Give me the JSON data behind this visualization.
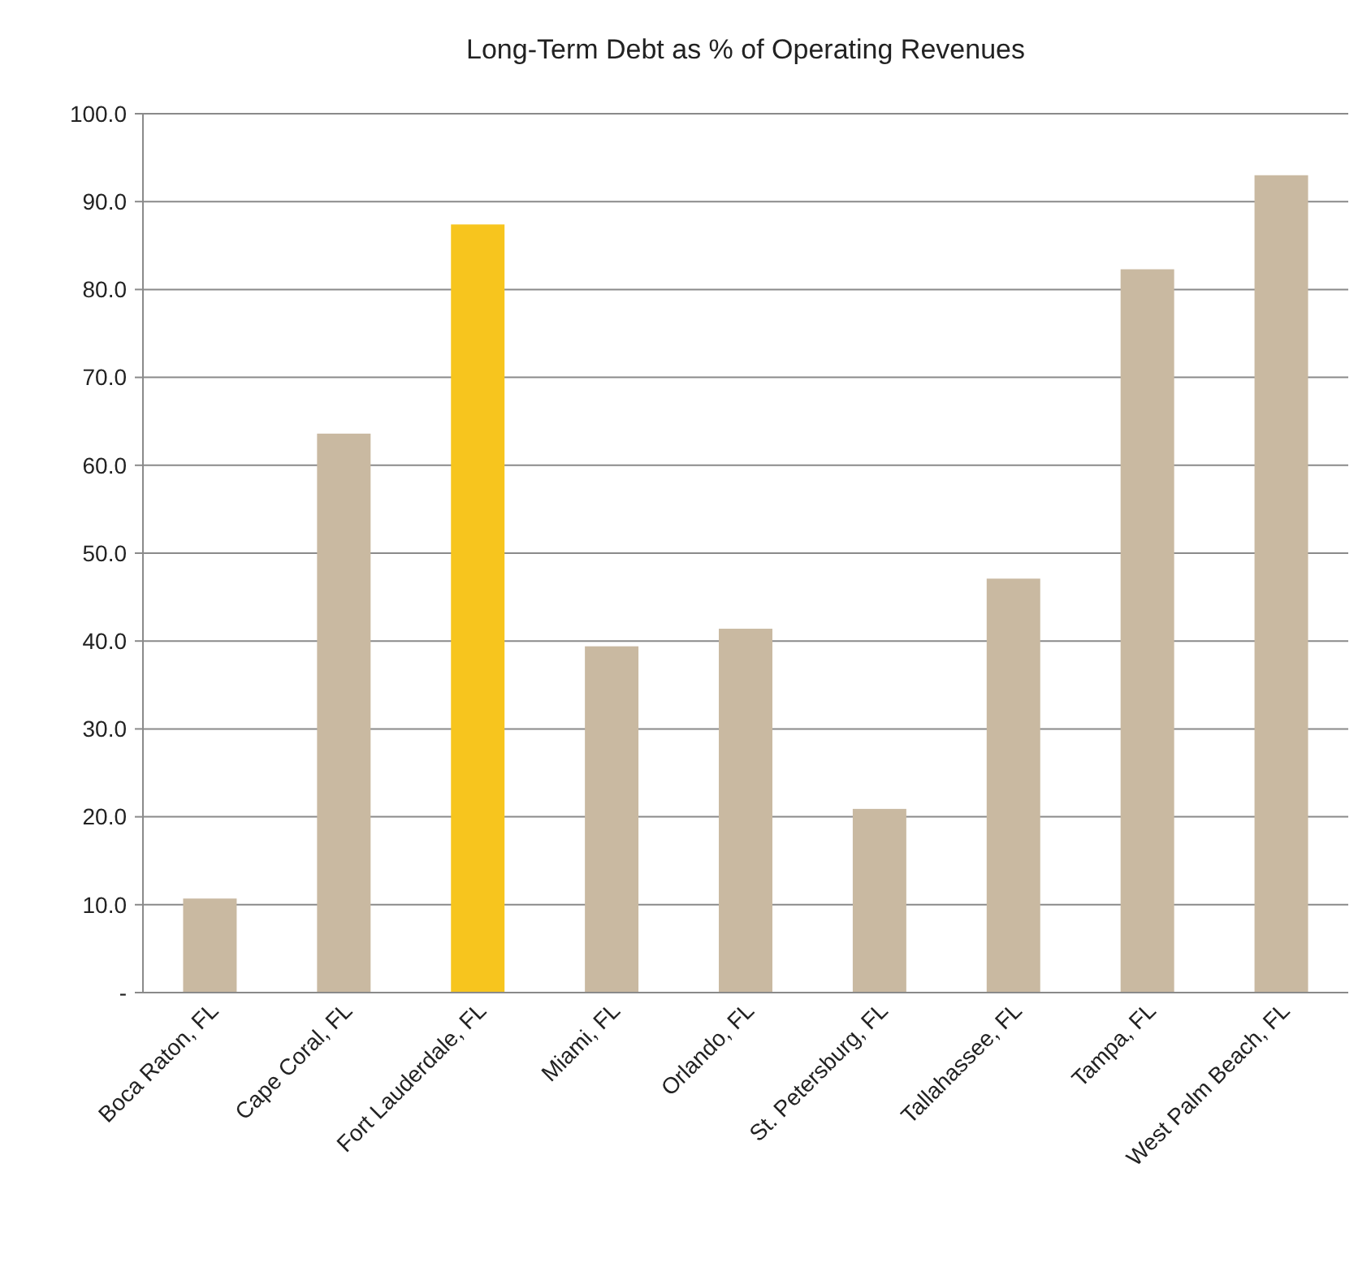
{
  "chart_data": {
    "type": "bar",
    "title": "Long-Term Debt as % of Operating Revenues",
    "categories": [
      "Boca Raton, FL",
      "Cape Coral, FL",
      "Fort Lauderdale, FL",
      "Miami, FL",
      "Orlando, FL",
      "St. Petersburg, FL",
      "Tallahassee, FL",
      "Tampa, FL",
      "West Palm Beach, FL"
    ],
    "values": [
      10.7,
      63.6,
      87.4,
      39.4,
      41.4,
      20.9,
      47.1,
      82.3,
      93.0
    ],
    "colors": [
      "#c9b9a1",
      "#c9b9a1",
      "#f7c51e",
      "#c9b9a1",
      "#c9b9a1",
      "#c9b9a1",
      "#c9b9a1",
      "#c9b9a1",
      "#c9b9a1"
    ],
    "ylim": [
      0,
      100
    ],
    "yticks": [
      {
        "value": 0,
        "label": "-"
      },
      {
        "value": 10,
        "label": "10.0"
      },
      {
        "value": 20,
        "label": "20.0"
      },
      {
        "value": 30,
        "label": "30.0"
      },
      {
        "value": 40,
        "label": "40.0"
      },
      {
        "value": 50,
        "label": "50.0"
      },
      {
        "value": 60,
        "label": "60.0"
      },
      {
        "value": 70,
        "label": "70.0"
      },
      {
        "value": 80,
        "label": "80.0"
      },
      {
        "value": 90,
        "label": "90.0"
      },
      {
        "value": 100,
        "label": "100.0"
      }
    ],
    "grid": "y"
  }
}
